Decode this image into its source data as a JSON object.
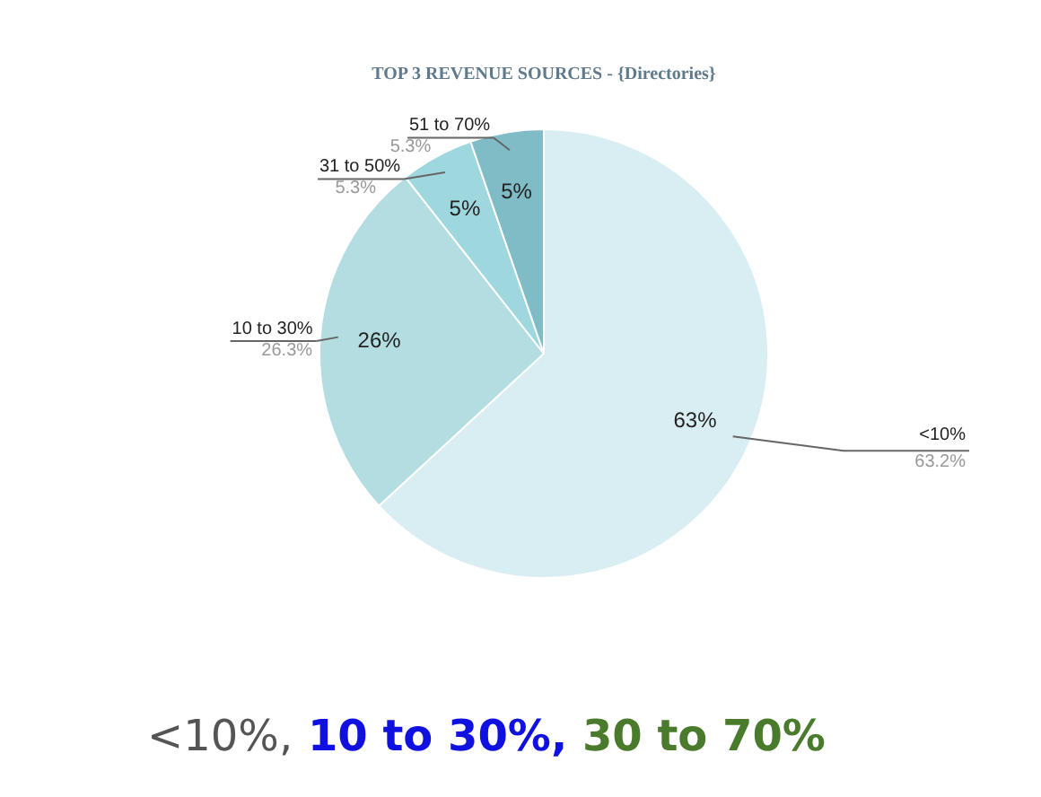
{
  "chart_data": {
    "type": "pie",
    "title": "TOP 3 REVENUE SOURCES - {Directories}",
    "categories": [
      "<10%",
      "10 to 30%",
      "31 to 50%",
      "51 to 70%"
    ],
    "values": [
      63.2,
      26.3,
      5.3,
      5.3
    ],
    "colors": [
      "#d9eef2",
      "#b3dde1",
      "#9fd7df",
      "#7fbcc6"
    ],
    "value_labels": [
      "63%",
      "26%",
      "5%",
      "5%"
    ],
    "legend": false,
    "annotations": [
      "63.2%",
      "26.3%",
      "5.3%",
      "5.3%",
      "<10%, 10 to 30%, 30 to 70%"
    ]
  }
}
